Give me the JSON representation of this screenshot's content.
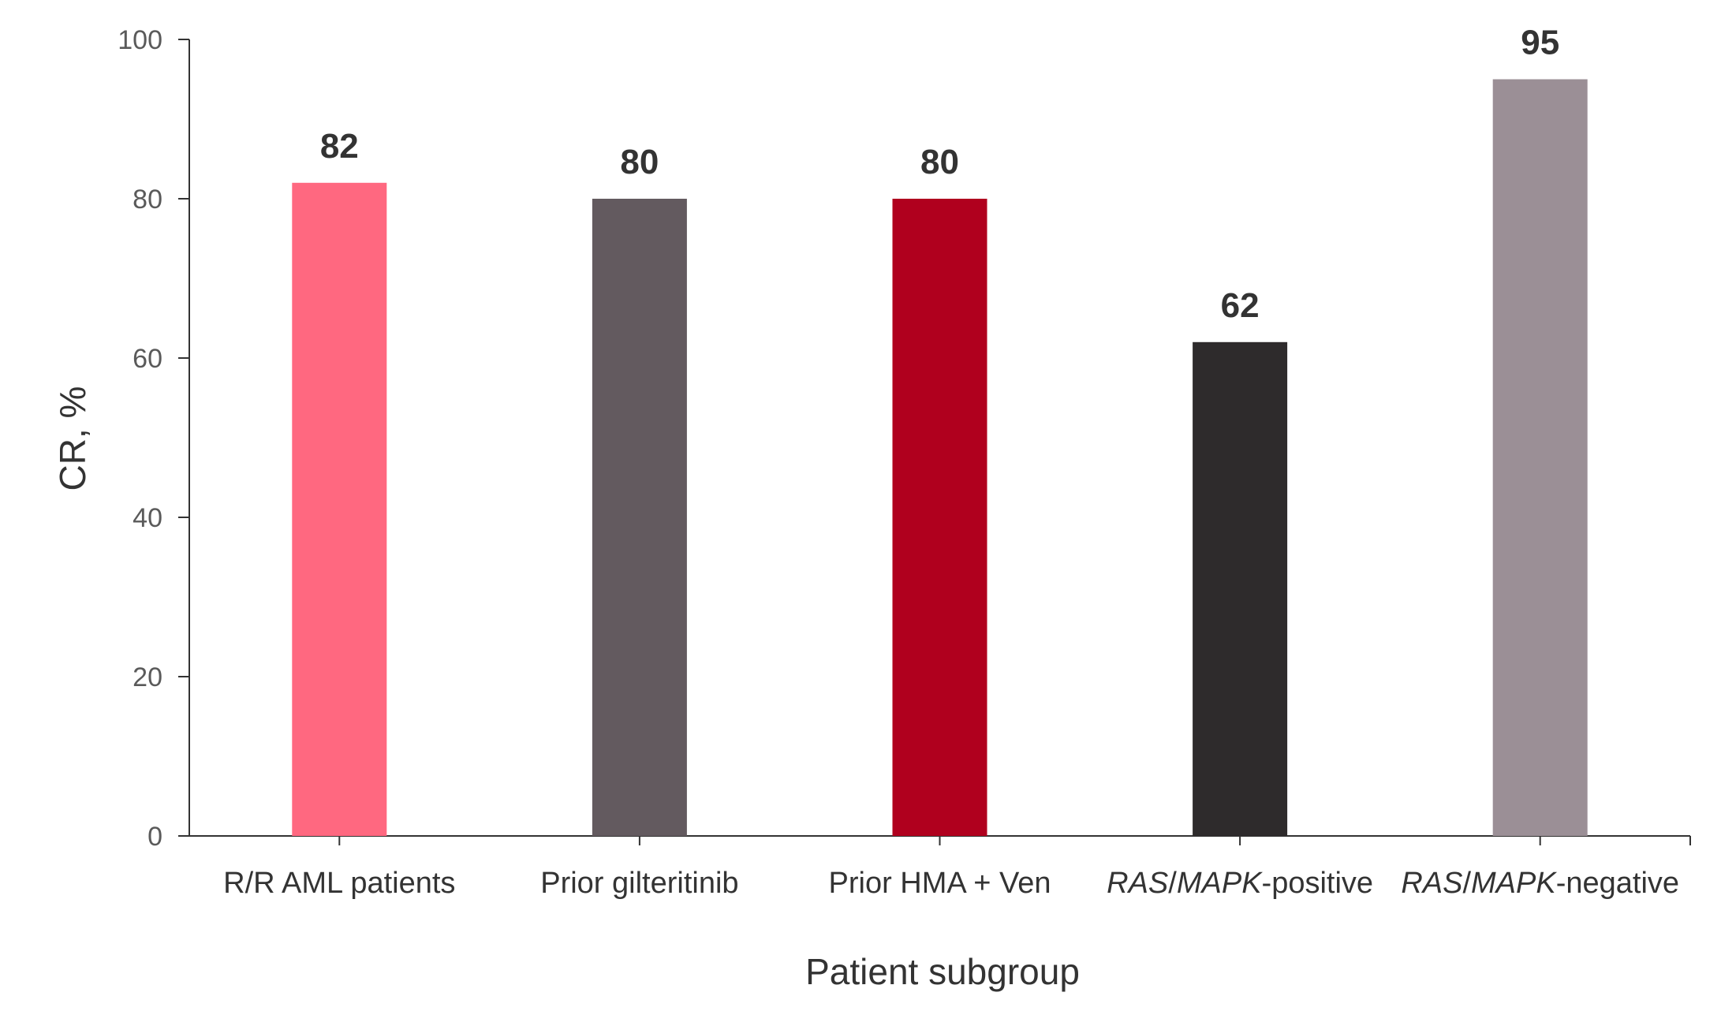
{
  "chart_data": {
    "type": "bar",
    "title": "",
    "xlabel": "Patient subgroup",
    "ylabel": "CR, %",
    "ylim": [
      0,
      100
    ],
    "yticks": [
      0,
      20,
      40,
      60,
      80,
      100
    ],
    "grid": false,
    "legend": "none",
    "categories": [
      "R/R AML patients",
      "Prior gilteritinib",
      "Prior HMA + Ven",
      "RAS/MAPK-positive",
      "RAS/MAPK-negative"
    ],
    "category_parts": [
      [
        {
          "text": "R/R AML patients",
          "italic": false
        }
      ],
      [
        {
          "text": "Prior gilteritinib",
          "italic": false
        }
      ],
      [
        {
          "text": "Prior HMA + Ven",
          "italic": false
        }
      ],
      [
        {
          "text": "RAS",
          "italic": true
        },
        {
          "text": "/",
          "italic": false
        },
        {
          "text": "MAPK",
          "italic": true
        },
        {
          "text": "-positive",
          "italic": false
        }
      ],
      [
        {
          "text": "RAS",
          "italic": true
        },
        {
          "text": "/",
          "italic": false
        },
        {
          "text": "MAPK",
          "italic": true
        },
        {
          "text": "-negative",
          "italic": false
        }
      ]
    ],
    "values": [
      82,
      80,
      80,
      62,
      95
    ],
    "colors": [
      "#ff6880",
      "#635a5f",
      "#b0001e",
      "#2e2b2c",
      "#9b8f96"
    ]
  }
}
